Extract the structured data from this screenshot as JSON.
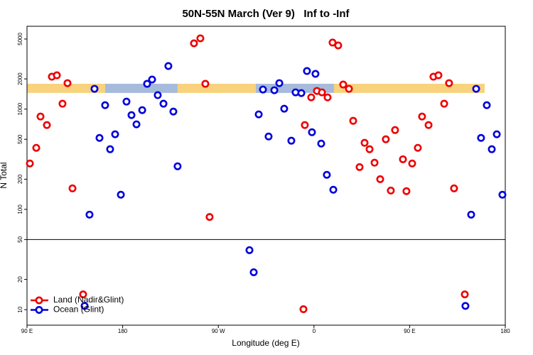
{
  "chart_data": {
    "type": "scatter",
    "title": "50N-55N March (Ver 9)   Inf to -Inf",
    "xlabel": "Longitude (deg E)",
    "ylabel": "N Total",
    "log_y": true,
    "xlim": [
      90,
      540
    ],
    "ylim": [
      7,
      6700
    ],
    "xticks": [
      {
        "value": 90,
        "label": "90 E"
      },
      {
        "value": 180,
        "label": "180"
      },
      {
        "value": 270,
        "label": "90 W"
      },
      {
        "value": 360,
        "label": "0"
      },
      {
        "value": 450,
        "label": "90 E"
      },
      {
        "value": 540,
        "label": "180"
      }
    ],
    "yticks": [
      10,
      20,
      50,
      100,
      200,
      500,
      1000,
      2000,
      5000
    ],
    "hline": 50,
    "legend": "bottom-left",
    "band": {
      "ylim": [
        1450,
        1790
      ],
      "segments": [
        {
          "x": [
            90,
            163.5
          ],
          "color": "#f8d27c"
        },
        {
          "x": [
            163.5,
            231.7
          ],
          "color": "#a6badb"
        },
        {
          "x": [
            231.7,
            305.3
          ],
          "color": "#f8d27c"
        },
        {
          "x": [
            305.3,
            378.8
          ],
          "color": "#a6badb"
        },
        {
          "x": [
            378.8,
            520.6
          ],
          "color": "#f8d27c"
        }
      ]
    },
    "series": [
      {
        "name": "Land (Nadir&Glint)",
        "color": "#ee0000",
        "x": [
          92.7,
          98.7,
          102.7,
          108.7,
          113.4,
          118.1,
          123.4,
          128.1,
          132.8,
          142.8,
          247.1,
          253.1,
          257.8,
          261.8,
          350.1,
          351.4,
          357.4,
          362.8,
          367.5,
          372.8,
          377.5,
          382.8,
          387.5,
          392.9,
          396.9,
          402.9,
          407.6,
          412.3,
          417.0,
          422.3,
          427.6,
          432.3,
          436.3,
          443.7,
          447.0,
          452.4,
          457.7,
          461.7,
          467.8,
          472.4,
          477.1,
          482.5,
          487.1,
          491.8,
          501.9
        ],
        "values": [
          287,
          411,
          843,
          693,
          2104,
          2174,
          1132,
          1816,
          162,
          14.2,
          4530,
          5080,
          1787,
          84,
          10.1,
          693,
          1310,
          1518,
          1469,
          1309,
          4610,
          4315,
          1758,
          1594,
          764,
          264,
          461,
          398,
          292,
          200,
          500,
          154,
          618,
          316,
          152,
          287,
          411,
          843,
          693,
          2104,
          2174,
          1132,
          1816,
          162,
          14.2
        ]
      },
      {
        "name": "Ocean (Glint)",
        "color": "#0000dd",
        "x": [
          144.2,
          148.8,
          153.5,
          158.2,
          163.5,
          168.2,
          172.9,
          178.3,
          183.6,
          188.3,
          193.0,
          198.4,
          203.0,
          207.7,
          213.0,
          218.4,
          223.0,
          227.7,
          231.7,
          299.3,
          303.3,
          308.0,
          312.0,
          317.3,
          322.7,
          327.4,
          332.0,
          338.7,
          342.7,
          348.1,
          353.4,
          358.1,
          361.4,
          366.8,
          372.1,
          378.2,
          502.5,
          507.9,
          512.6,
          517.2,
          522.6,
          527.3,
          532.0,
          537.3
        ],
        "values": [
          10.9,
          88.6,
          1594,
          516,
          1094,
          398,
          561,
          140,
          1188,
          871,
          705,
          977,
          1787,
          1972,
          1377,
          1132,
          2690,
          945,
          269,
          39.2,
          23.6,
          886,
          1568,
          533,
          1543,
          1816,
          1009,
          484,
          1469,
          1445,
          2397,
          588,
          2246,
          453,
          221,
          157,
          10.9,
          88.6,
          1594,
          516,
          1094,
          398,
          561,
          140
        ]
      }
    ]
  }
}
